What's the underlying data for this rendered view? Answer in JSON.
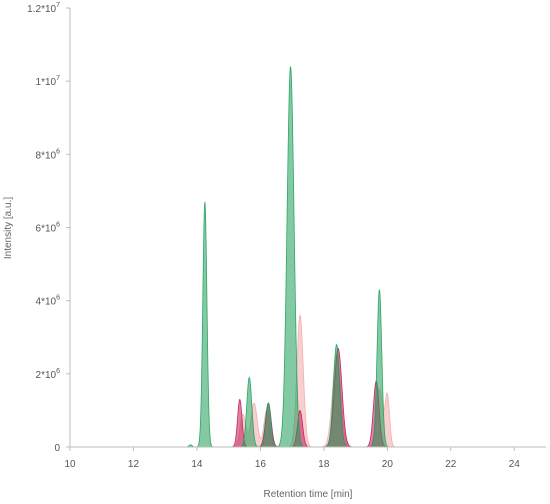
{
  "chart_data": {
    "type": "area",
    "title": "",
    "xlabel": "Retention time [min]",
    "ylabel": "Intensity [a.u.]",
    "xlim": [
      10,
      25
    ],
    "ylim": [
      0,
      12000000
    ],
    "grid": false,
    "x_ticks": [
      10,
      12,
      14,
      16,
      18,
      20,
      22,
      24
    ],
    "x_tick_labels": [
      "10",
      "12",
      "14",
      "16",
      "18",
      "20",
      "22",
      "24"
    ],
    "y_ticks": [
      0,
      2000000,
      4000000,
      6000000,
      8000000,
      10000000,
      12000000
    ],
    "y_tick_labels": [
      {
        "base": "0",
        "exp": ""
      },
      {
        "base": "2*10",
        "exp": "6"
      },
      {
        "base": "4*10",
        "exp": "6"
      },
      {
        "base": "6*10",
        "exp": "6"
      },
      {
        "base": "8*10",
        "exp": "6"
      },
      {
        "base": "1*10",
        "exp": "7"
      },
      {
        "base": "1.2*10",
        "exp": "7"
      }
    ],
    "series": [
      {
        "color": "#f2a7a7",
        "peaks": [
          {
            "x": 15.45,
            "y": 900000,
            "w": 0.09
          },
          {
            "x": 15.8,
            "y": 1200000,
            "w": 0.1
          },
          {
            "x": 16.2,
            "y": 1000000,
            "w": 0.09
          },
          {
            "x": 17.25,
            "y": 3600000,
            "w": 0.1
          },
          {
            "x": 18.4,
            "y": 2500000,
            "w": 0.13
          },
          {
            "x": 19.75,
            "y": 1600000,
            "w": 0.1
          },
          {
            "x": 20.0,
            "y": 1400000,
            "w": 0.07
          }
        ]
      },
      {
        "color": "#c2185b",
        "peaks": [
          {
            "x": 15.35,
            "y": 1300000,
            "w": 0.07
          },
          {
            "x": 16.25,
            "y": 1200000,
            "w": 0.09
          },
          {
            "x": 17.25,
            "y": 1000000,
            "w": 0.08
          },
          {
            "x": 18.45,
            "y": 2700000,
            "w": 0.12
          },
          {
            "x": 19.65,
            "y": 1800000,
            "w": 0.09
          }
        ]
      },
      {
        "color": "#1e9e5a",
        "peaks": [
          {
            "x": 13.8,
            "y": 60000,
            "w": 0.05
          },
          {
            "x": 14.25,
            "y": 6700000,
            "w": 0.065
          },
          {
            "x": 15.65,
            "y": 1900000,
            "w": 0.08
          },
          {
            "x": 16.25,
            "y": 1200000,
            "w": 0.08
          },
          {
            "x": 16.95,
            "y": 10400000,
            "w": 0.11
          },
          {
            "x": 18.4,
            "y": 2800000,
            "w": 0.1
          },
          {
            "x": 19.75,
            "y": 4300000,
            "w": 0.075
          }
        ]
      }
    ]
  }
}
